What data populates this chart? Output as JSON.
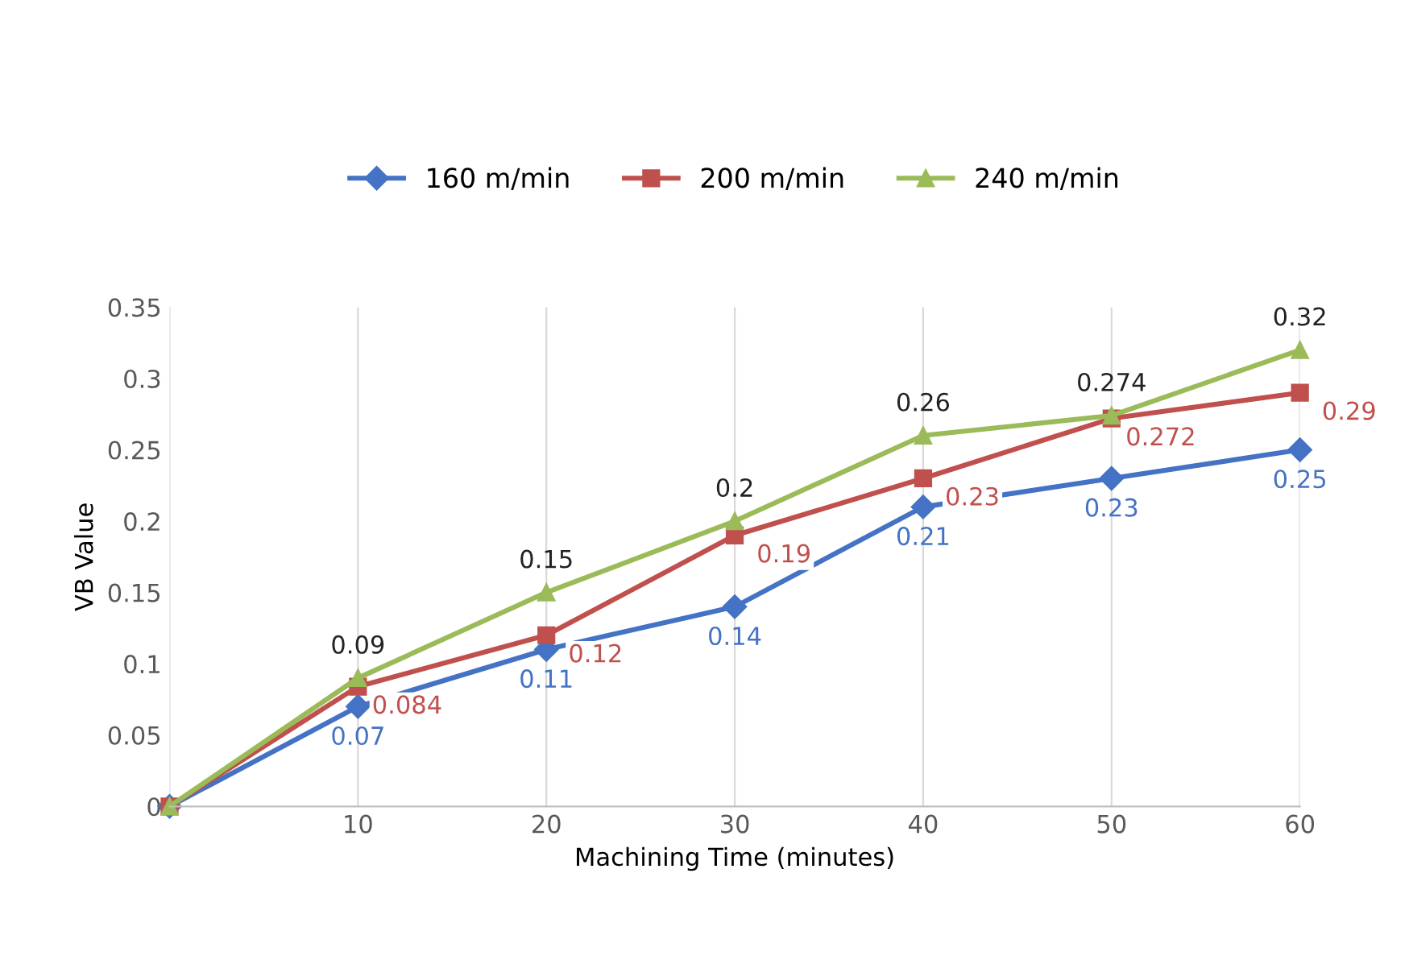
{
  "chart_data": {
    "type": "line",
    "xlabel": "Machining Time (minutes)",
    "ylabel": "VB Value",
    "categories": [
      null,
      "10",
      "20",
      "30",
      "40",
      "50",
      "60"
    ],
    "ylim": [
      0,
      0.35
    ],
    "yticks": [
      0,
      0.05,
      0.1,
      0.15,
      0.2,
      0.25,
      0.3,
      0.35
    ],
    "grid": "x",
    "legend": "top",
    "series": [
      {
        "name": "160 m/min",
        "color": "#4472c4",
        "marker": "diamond",
        "values": [
          0,
          0.07,
          0.11,
          0.14,
          0.21,
          0.23,
          0.25
        ],
        "value_labels": [
          null,
          "0.07",
          "0.11",
          "0.14",
          "0.21",
          "0.23",
          "0.25"
        ]
      },
      {
        "name": "200 m/min",
        "color": "#c0504d",
        "marker": "square",
        "values": [
          0,
          0.084,
          0.12,
          0.19,
          0.23,
          0.272,
          0.29
        ],
        "value_labels": [
          null,
          "0.084",
          "0.12",
          "0.19",
          "0.23",
          "0.272",
          "0.29"
        ]
      },
      {
        "name": "240 m/min",
        "color": "#9bbb59",
        "marker": "triangle",
        "values": [
          0,
          0.09,
          0.15,
          0.2,
          0.26,
          0.274,
          0.32
        ],
        "value_labels": [
          null,
          "0.09",
          "0.15",
          "0.2",
          "0.26",
          "0.274",
          "0.32"
        ]
      }
    ]
  }
}
